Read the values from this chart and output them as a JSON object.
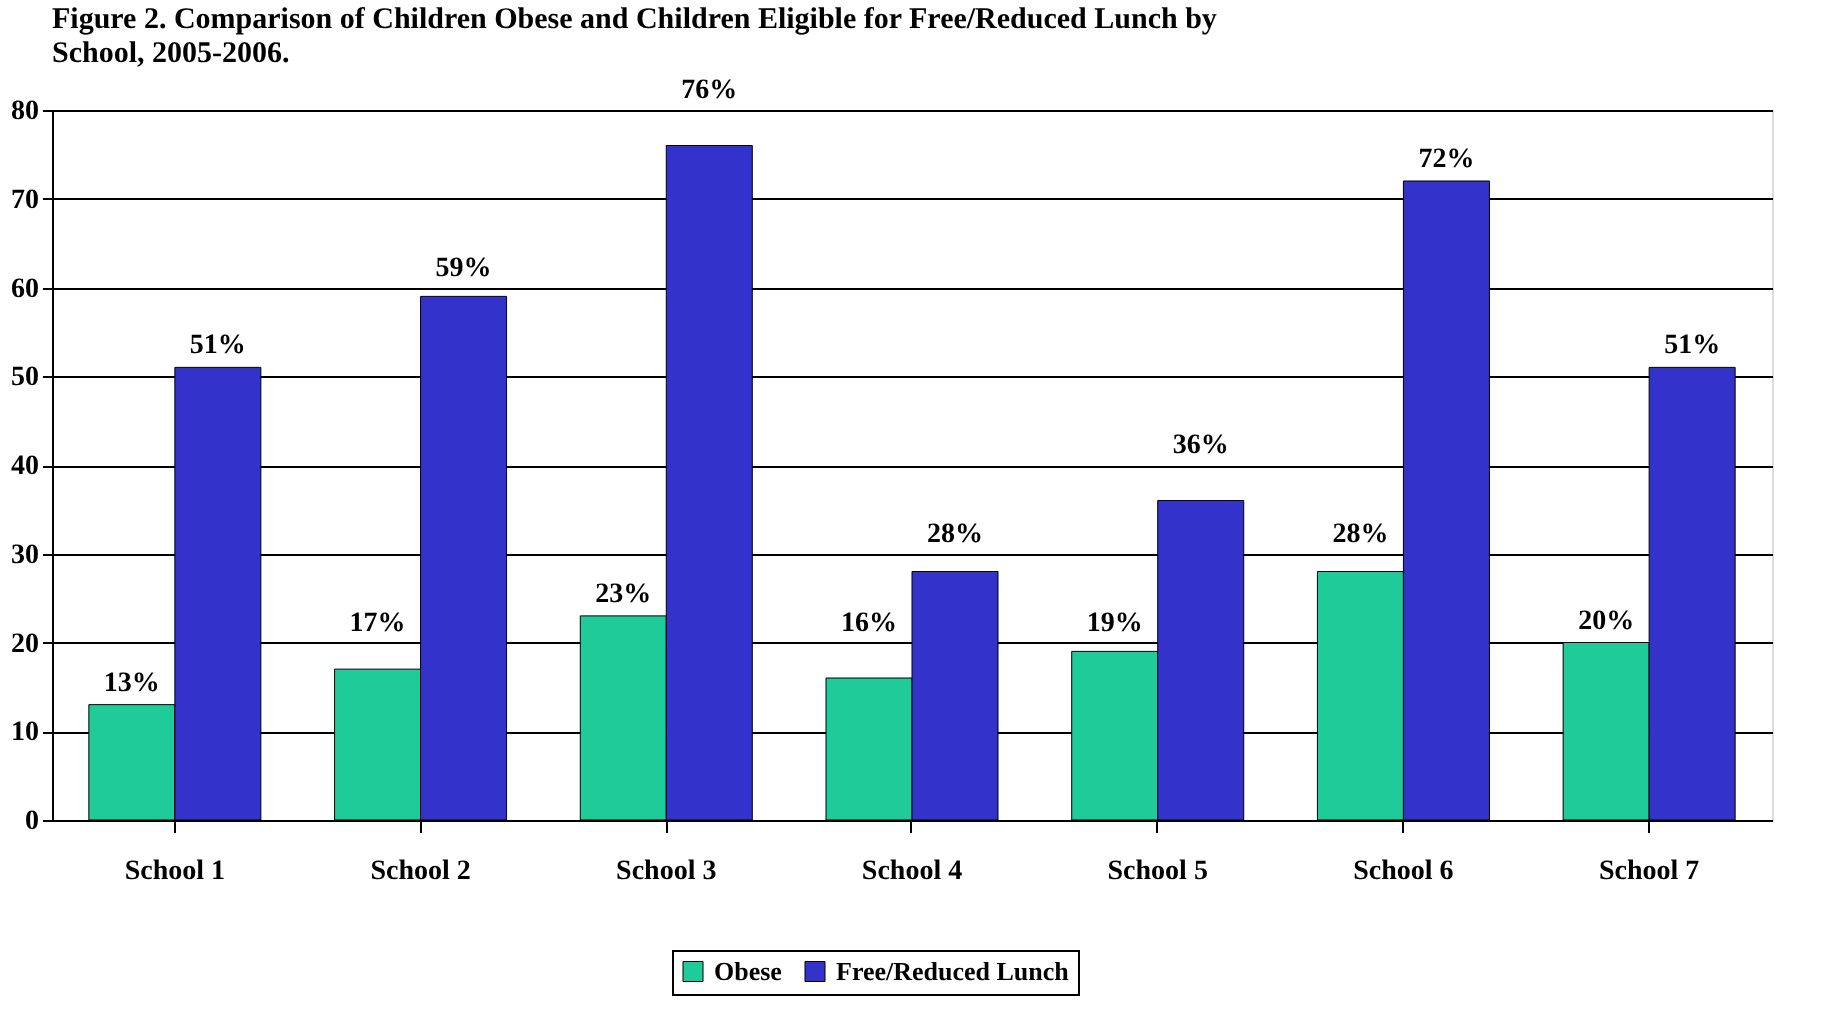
{
  "chart_data": {
    "type": "bar",
    "title": "Figure 2. Comparison of Children Obese and Children Eligible for Free/Reduced Lunch by School, 2005-2006.",
    "categories": [
      "School 1",
      "School 2",
      "School 3",
      "School 4",
      "School 5",
      "School 6",
      "School 7"
    ],
    "series": [
      {
        "name": "Obese",
        "color": "#1fcc99",
        "values": [
          13,
          17,
          23,
          16,
          19,
          28,
          20
        ],
        "value_labels": [
          "13%",
          "17%",
          "23%",
          "16%",
          "19%",
          "28%",
          "20%"
        ]
      },
      {
        "name": "Free/Reduced Lunch",
        "color": "#3333cc",
        "values": [
          51,
          59,
          76,
          28,
          36,
          72,
          51
        ],
        "value_labels": [
          "51%",
          "59%",
          "76%",
          "28%",
          "36%",
          "72%",
          "51%"
        ]
      }
    ],
    "ylim": [
      0,
      80
    ],
    "yticks": [
      0,
      10,
      20,
      30,
      40,
      50,
      60,
      70,
      80
    ],
    "grid": "y",
    "legend": "bottom"
  }
}
